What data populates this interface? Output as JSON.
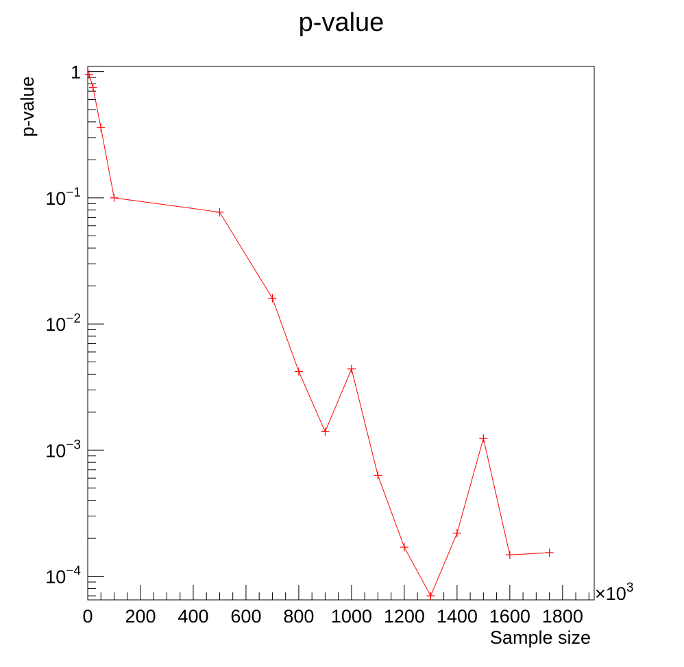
{
  "chart_data": {
    "type": "line",
    "title": "p-value",
    "xlabel": "Sample size",
    "ylabel": "p-value",
    "x_multiplier": "×10",
    "x_multiplier_exponent": "3",
    "xlim": [
      0,
      1920
    ],
    "ylim": [
      6.5e-05,
      1.1
    ],
    "y_scale": "log",
    "grid": false,
    "legend": "none",
    "x_ticks": [
      {
        "value": 0,
        "label": "0"
      },
      {
        "value": 200,
        "label": "200"
      },
      {
        "value": 400,
        "label": "400"
      },
      {
        "value": 600,
        "label": "600"
      },
      {
        "value": 800,
        "label": "800"
      },
      {
        "value": 1000,
        "label": "1000"
      },
      {
        "value": 1200,
        "label": "1200"
      },
      {
        "value": 1400,
        "label": "1400"
      },
      {
        "value": 1600,
        "label": "1600"
      },
      {
        "value": 1800,
        "label": "1800"
      }
    ],
    "y_ticks": [
      {
        "value": 1,
        "base": "1",
        "exp": ""
      },
      {
        "value": 0.1,
        "base": "10",
        "exp": "−1"
      },
      {
        "value": 0.01,
        "base": "10",
        "exp": "−2"
      },
      {
        "value": 0.001,
        "base": "10",
        "exp": "−3"
      },
      {
        "value": 0.0001,
        "base": "10",
        "exp": "−4"
      }
    ],
    "series": [
      {
        "color": "#ff0000",
        "marker": "plus",
        "x": [
          5,
          20,
          50,
          100,
          500,
          700,
          800,
          900,
          1000,
          1100,
          1200,
          1300,
          1400,
          1500,
          1600,
          1750
        ],
        "y": [
          0.95,
          0.75,
          0.36,
          0.1,
          0.077,
          0.016,
          0.0042,
          0.0014,
          0.0044,
          0.00063,
          0.00017,
          7e-05,
          0.00022,
          0.00124,
          0.000148,
          0.000154
        ]
      }
    ]
  }
}
